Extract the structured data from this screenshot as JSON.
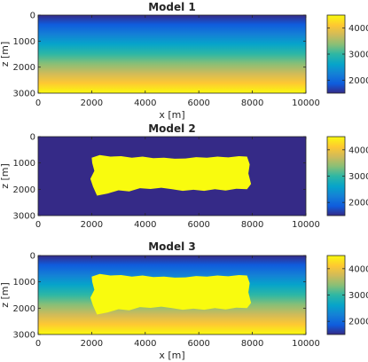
{
  "chart_data": [
    {
      "type": "heatmap",
      "title": "Model 1",
      "xlabel": "x [m]",
      "ylabel": "z [m]",
      "xlim": [
        0,
        10000
      ],
      "ylim": [
        0,
        3000
      ],
      "y_reversed": true,
      "xticks": [
        "0",
        "2000",
        "4000",
        "6000",
        "8000",
        "10000"
      ],
      "yticks": [
        "0",
        "1000",
        "2000",
        "3000"
      ],
      "field": "linear velocity gradient with depth: 1500 m/s at z=0 to 4500 m/s at z=3000",
      "anomaly": false,
      "colorbar": {
        "range": [
          1500,
          4500
        ],
        "ticks": [
          "2000",
          "3000",
          "4000"
        ],
        "colormap": "parula"
      }
    },
    {
      "type": "heatmap",
      "title": "Model 2",
      "xlabel": "",
      "ylabel": "z [m]",
      "xlim": [
        0,
        10000
      ],
      "ylim": [
        0,
        3000
      ],
      "y_reversed": true,
      "xticks": [
        "0",
        "2000",
        "4000",
        "6000",
        "8000",
        "10000"
      ],
      "yticks": [
        "0",
        "1000",
        "2000",
        "3000"
      ],
      "field": "constant background 1500 m/s with high-velocity body 4500 m/s",
      "anomaly": true,
      "anomaly_value": 4500,
      "background_value": 1500,
      "colorbar": {
        "range": [
          1500,
          4500
        ],
        "ticks": [
          "2000",
          "3000",
          "4000"
        ],
        "colormap": "parula"
      }
    },
    {
      "type": "heatmap",
      "title": "Model 3",
      "xlabel": "x [m]",
      "ylabel": "z [m]",
      "xlim": [
        0,
        10000
      ],
      "ylim": [
        0,
        3000
      ],
      "y_reversed": true,
      "xticks": [
        "0",
        "2000",
        "4000",
        "6000",
        "8000",
        "10000"
      ],
      "yticks": [
        "0",
        "1000",
        "2000",
        "3000"
      ],
      "field": "linear gradient 1500-4500 m/s with high-velocity body 4500 m/s",
      "anomaly": true,
      "anomaly_value": 4500,
      "colorbar": {
        "range": [
          1500,
          4500
        ],
        "ticks": [
          "2000",
          "3000",
          "4000"
        ],
        "colormap": "parula"
      }
    }
  ],
  "anomaly_outline": [
    [
      2000,
      800
    ],
    [
      2300,
      700
    ],
    [
      2700,
      760
    ],
    [
      3100,
      740
    ],
    [
      3500,
      800
    ],
    [
      3900,
      760
    ],
    [
      4300,
      820
    ],
    [
      4700,
      800
    ],
    [
      5100,
      840
    ],
    [
      5500,
      830
    ],
    [
      5900,
      780
    ],
    [
      6300,
      800
    ],
    [
      6700,
      760
    ],
    [
      7100,
      790
    ],
    [
      7500,
      740
    ],
    [
      7800,
      760
    ],
    [
      7900,
      1050
    ],
    [
      7850,
      1400
    ],
    [
      7950,
      1800
    ],
    [
      7800,
      2000
    ],
    [
      7400,
      1980
    ],
    [
      7000,
      2050
    ],
    [
      6600,
      2000
    ],
    [
      6200,
      2060
    ],
    [
      5800,
      2020
    ],
    [
      5400,
      2060
    ],
    [
      5000,
      2000
    ],
    [
      4600,
      1940
    ],
    [
      4200,
      1990
    ],
    [
      3800,
      1960
    ],
    [
      3400,
      2080
    ],
    [
      3000,
      2040
    ],
    [
      2600,
      2160
    ],
    [
      2200,
      2240
    ],
    [
      2050,
      1900
    ],
    [
      1950,
      1600
    ],
    [
      2100,
      1300
    ],
    [
      2020,
      1000
    ]
  ],
  "colors": {
    "low": "#352a87",
    "high": "#f9fb0e"
  }
}
